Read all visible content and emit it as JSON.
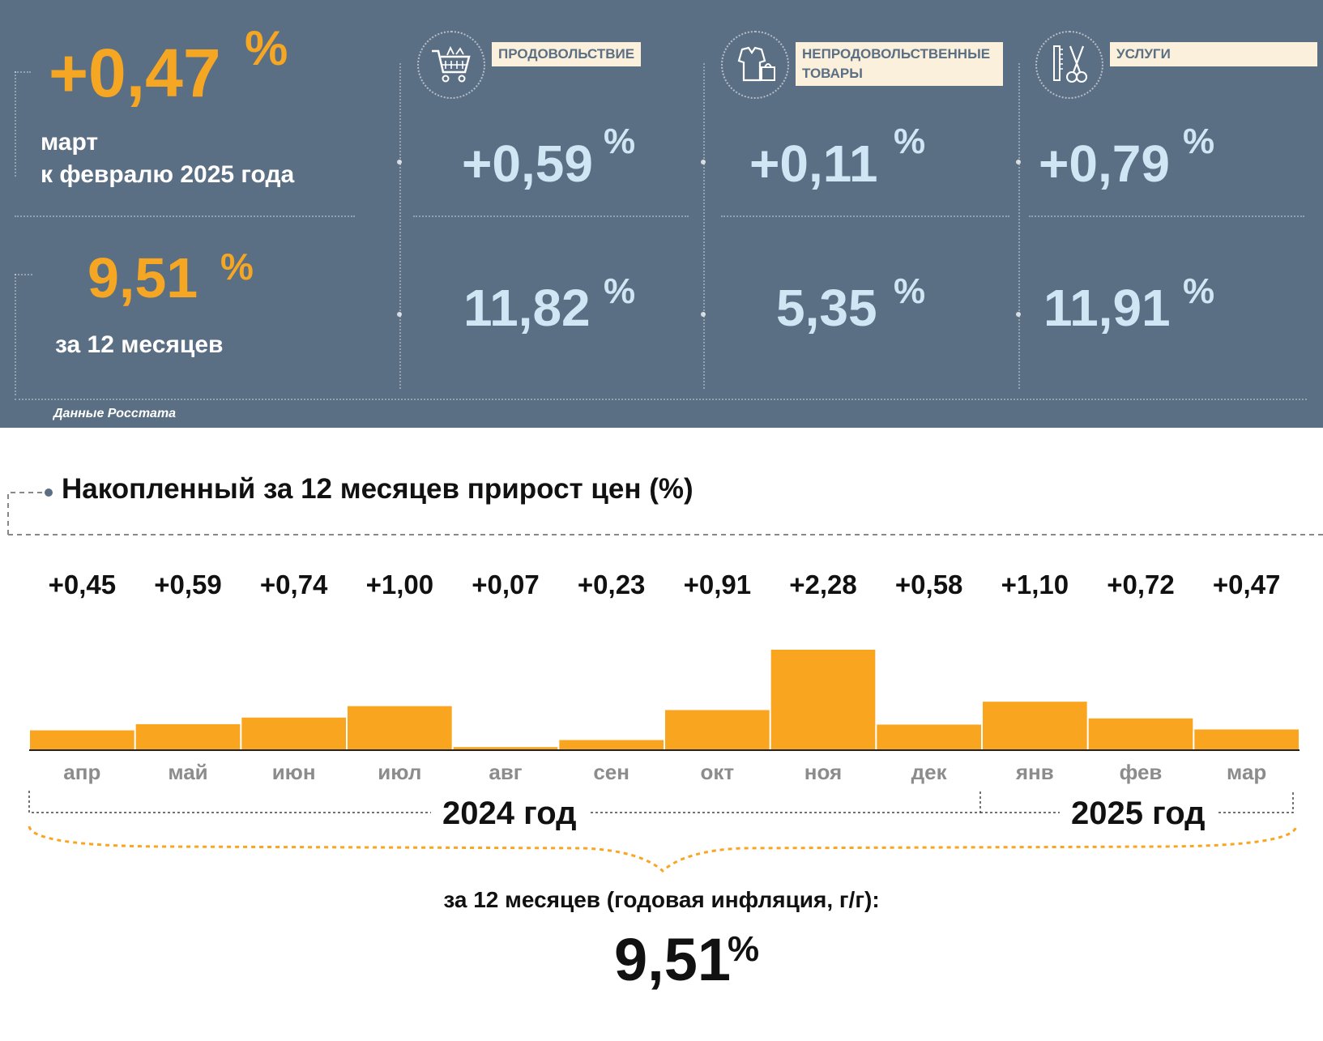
{
  "summary": {
    "month_change": "+0,47",
    "month_pct": "%",
    "month_caption_1": "март",
    "month_caption_2": "к февралю 2025 года",
    "year_change": "9,51",
    "year_pct": "%",
    "year_caption": "за 12 месяцев",
    "source": "Данные Росстата"
  },
  "categories": [
    {
      "label": "ПРОДОВОЛЬСТВИЕ",
      "icon": "shopping-cart-icon",
      "month": "+0,59",
      "year": "11,82",
      "pct": "%"
    },
    {
      "label": "НЕПРОДОВОЛЬСТВЕННЫЕ ТОВАРЫ",
      "icon": "clothes-bag-icon",
      "month": "+0,11",
      "year": "5,35",
      "pct": "%"
    },
    {
      "label": "УСЛУГИ",
      "icon": "scissors-comb-icon",
      "month": "+0,79",
      "year": "11,91",
      "pct": "%"
    }
  ],
  "colors": {
    "panel": "#5b6f84",
    "accent": "#f5a623",
    "light_blue": "#cfe6f5",
    "bar": "#f9a51f"
  },
  "chart_data": {
    "type": "bar",
    "title": "Накопленный за 12 месяцев прирост цен (%)",
    "categories": [
      "апр",
      "май",
      "июн",
      "июл",
      "авг",
      "сен",
      "окт",
      "ноя",
      "дек",
      "янв",
      "фев",
      "мар"
    ],
    "values": [
      0.45,
      0.59,
      0.74,
      1.0,
      0.07,
      0.23,
      0.91,
      2.28,
      0.58,
      1.1,
      0.72,
      0.47
    ],
    "value_labels": [
      "+0,45",
      "+0,59",
      "+0,74",
      "+1,00",
      "+0,07",
      "+0,23",
      "+0,91",
      "+2,28",
      "+0,58",
      "+1,10",
      "+0,72",
      "+0,47"
    ],
    "year_labels": [
      "2024 год",
      "2025 год"
    ],
    "grid": false,
    "annual_caption": "за 12 месяцев (годовая инфляция, г/г):",
    "annual_value": "9,51",
    "annual_pct": "%"
  }
}
